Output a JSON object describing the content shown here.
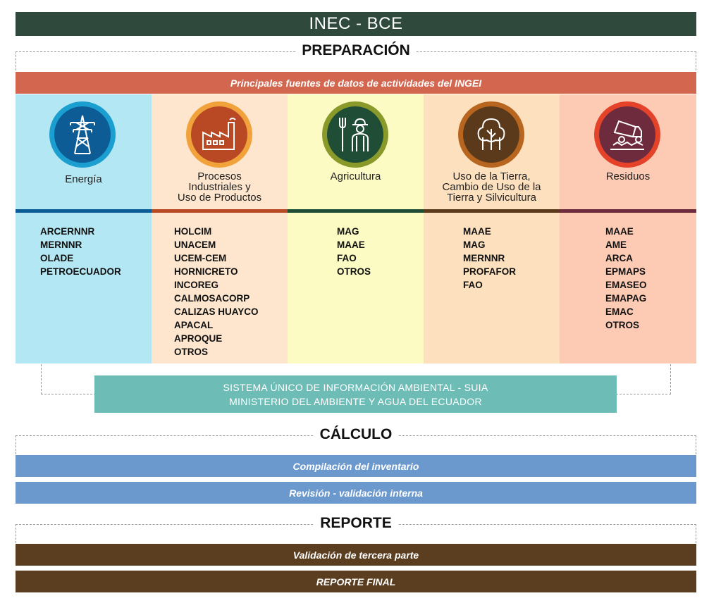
{
  "header": {
    "title": "INEC - BCE"
  },
  "sections": {
    "preparacion": "PREPARACIÓN",
    "calculo": "CÁLCULO",
    "reporte": "REPORTE"
  },
  "sources_banner": "Principales fuentes de datos de actividades del INGEI",
  "columns": [
    {
      "title": "Energía",
      "icon": "power-tower-icon",
      "bg": "#b3e7f4",
      "accent": "#0d5c96",
      "items": [
        "ARCERNNR",
        "MERNNR",
        "OLADE",
        "PETROECUADOR"
      ]
    },
    {
      "title": "Procesos\nIndustriales y\nUso de Productos",
      "icon": "factory-icon",
      "bg": "#fde6cd",
      "accent": "#b94924",
      "items": [
        "HOLCIM",
        "UNACEM",
        "UCEM-CEM",
        "HORNICRETO",
        "INCOREG",
        "CALMOSACORP",
        "CALIZAS HUAYCO",
        "APACAL",
        "APROQUE",
        "OTROS"
      ]
    },
    {
      "title": "Agricultura",
      "icon": "farmer-icon",
      "bg": "#fcfbc4",
      "accent": "#1f4d35",
      "items": [
        "MAG",
        "MAAE",
        "FAO",
        "OTROS"
      ]
    },
    {
      "title": "Uso de la Tierra,\nCambio de Uso de la\nTierra y Silvicultura",
      "icon": "trees-icon",
      "bg": "#fde0be",
      "accent": "#5b3a1c",
      "items": [
        "MAAE",
        "MAG",
        "MERNNR",
        "PROFAFOR",
        "FAO"
      ]
    },
    {
      "title": "Residuos",
      "icon": "dump-truck-icon",
      "bg": "#fdcab4",
      "accent": "#6e2b3d",
      "items": [
        "MAAE",
        "AME",
        "ARCA",
        "EPMAPS",
        "EMASEO",
        "EMAPAG",
        "EMAC",
        "OTROS"
      ]
    }
  ],
  "suia": {
    "line1": "SISTEMA ÚNICO DE INFORMACIÓN AMBIENTAL - SUIA",
    "line2": "MINISTERIO DEL AMBIENTE Y AGUA DEL ECUADOR"
  },
  "calculo_steps": [
    "Compilación del inventario",
    "Revisión - validación interna"
  ],
  "reporte_steps": [
    "Validación de tercera parte",
    "REPORTE FINAL"
  ],
  "colors": {
    "header": "#2f4a3c",
    "banner": "#d3664f",
    "calculo": "#6b98cd",
    "reporte": "#5b3e20",
    "suia": "#6dbcb6"
  }
}
